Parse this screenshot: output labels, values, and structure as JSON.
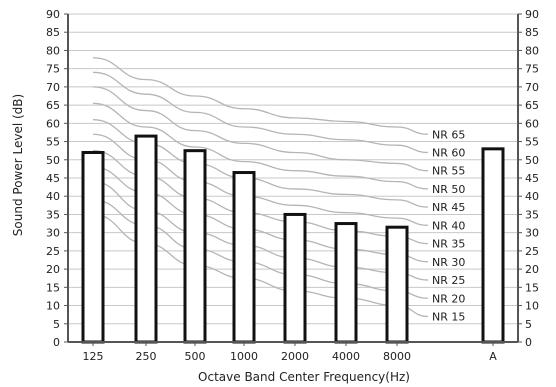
{
  "chart_data": {
    "type": "bar",
    "title": "",
    "xlabel": "Octave Band Center Frequency(Hz)",
    "ylabel": "Sound Power Level (dB)",
    "ylim": [
      0,
      90
    ],
    "y_ticks": [
      "0",
      "5",
      "10",
      "15",
      "20",
      "25",
      "30",
      "35",
      "40",
      "45",
      "50",
      "55",
      "60",
      "65",
      "70",
      "75",
      "80",
      "85",
      "90"
    ],
    "right_axis_ticks": true,
    "grid": "horizontal",
    "categories": [
      "125",
      "250",
      "500",
      "1000",
      "2000",
      "4000",
      "8000"
    ],
    "values": [
      52,
      56.5,
      52.5,
      46.5,
      35,
      32.5,
      31.5
    ],
    "a_weighted": {
      "label": "A",
      "value": 53
    },
    "nr_curves": [
      {
        "name": "NR 15",
        "values": [
          35,
          27,
          21,
          17.5,
          14,
          12,
          10
        ],
        "label_end": 7
      },
      {
        "name": "NR 20",
        "values": [
          39,
          32,
          25.5,
          22,
          18.5,
          16,
          14
        ],
        "label_end": 12
      },
      {
        "name": "NR 25",
        "values": [
          44,
          36,
          30,
          26.5,
          23,
          20.5,
          19
        ],
        "label_end": 17
      },
      {
        "name": "NR 30",
        "values": [
          48,
          41,
          35,
          31,
          28,
          25.5,
          24
        ],
        "label_end": 22
      },
      {
        "name": "NR 35",
        "values": [
          52.5,
          45.5,
          39.5,
          35.5,
          33,
          30.5,
          29
        ],
        "label_end": 27
      },
      {
        "name": "NR 40",
        "values": [
          57,
          50,
          44,
          40,
          37.5,
          35.5,
          34
        ],
        "label_end": 32
      },
      {
        "name": "NR 45",
        "values": [
          61,
          54.5,
          49,
          45,
          42,
          40.5,
          39
        ],
        "label_end": 37
      },
      {
        "name": "NR 50",
        "values": [
          65.5,
          59,
          53.5,
          49.5,
          47,
          45.5,
          44
        ],
        "label_end": 42
      },
      {
        "name": "NR 55",
        "values": [
          70,
          63.5,
          58,
          54.5,
          52,
          50,
          49
        ],
        "label_end": 47
      },
      {
        "name": "NR 60",
        "values": [
          74,
          68,
          63,
          59,
          57,
          55.5,
          54
        ],
        "label_end": 52
      },
      {
        "name": "NR 65",
        "values": [
          78,
          72,
          67.5,
          64,
          61.5,
          60.5,
          59
        ],
        "label_end": 57
      }
    ],
    "colors": {
      "bar_fill": "#ffffff",
      "bar_stroke": "#111111",
      "curve": "#b5b5b5",
      "grid": "#c8c8c8",
      "axis": "#555555"
    }
  }
}
